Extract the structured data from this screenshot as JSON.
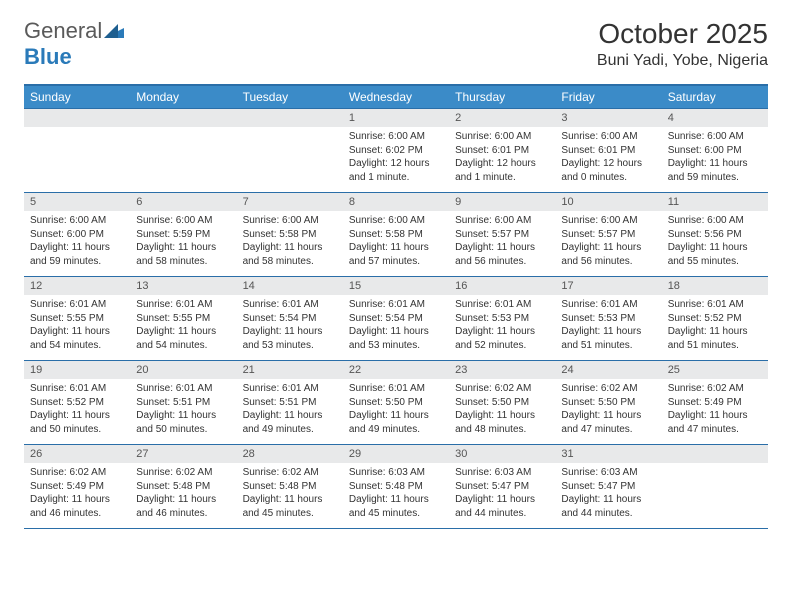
{
  "logo": {
    "word1": "General",
    "word2": "Blue"
  },
  "title": "October 2025",
  "location": "Buni Yadi, Yobe, Nigeria",
  "colors": {
    "header_bg": "#3b8bc8",
    "border": "#2a6ea8",
    "daynum_bg": "#e8e9ea",
    "text": "#333333"
  },
  "day_names": [
    "Sunday",
    "Monday",
    "Tuesday",
    "Wednesday",
    "Thursday",
    "Friday",
    "Saturday"
  ],
  "weeks": [
    [
      null,
      null,
      null,
      {
        "n": "1",
        "sunrise": "Sunrise: 6:00 AM",
        "sunset": "Sunset: 6:02 PM",
        "daylight": "Daylight: 12 hours and 1 minute."
      },
      {
        "n": "2",
        "sunrise": "Sunrise: 6:00 AM",
        "sunset": "Sunset: 6:01 PM",
        "daylight": "Daylight: 12 hours and 1 minute."
      },
      {
        "n": "3",
        "sunrise": "Sunrise: 6:00 AM",
        "sunset": "Sunset: 6:01 PM",
        "daylight": "Daylight: 12 hours and 0 minutes."
      },
      {
        "n": "4",
        "sunrise": "Sunrise: 6:00 AM",
        "sunset": "Sunset: 6:00 PM",
        "daylight": "Daylight: 11 hours and 59 minutes."
      }
    ],
    [
      {
        "n": "5",
        "sunrise": "Sunrise: 6:00 AM",
        "sunset": "Sunset: 6:00 PM",
        "daylight": "Daylight: 11 hours and 59 minutes."
      },
      {
        "n": "6",
        "sunrise": "Sunrise: 6:00 AM",
        "sunset": "Sunset: 5:59 PM",
        "daylight": "Daylight: 11 hours and 58 minutes."
      },
      {
        "n": "7",
        "sunrise": "Sunrise: 6:00 AM",
        "sunset": "Sunset: 5:58 PM",
        "daylight": "Daylight: 11 hours and 58 minutes."
      },
      {
        "n": "8",
        "sunrise": "Sunrise: 6:00 AM",
        "sunset": "Sunset: 5:58 PM",
        "daylight": "Daylight: 11 hours and 57 minutes."
      },
      {
        "n": "9",
        "sunrise": "Sunrise: 6:00 AM",
        "sunset": "Sunset: 5:57 PM",
        "daylight": "Daylight: 11 hours and 56 minutes."
      },
      {
        "n": "10",
        "sunrise": "Sunrise: 6:00 AM",
        "sunset": "Sunset: 5:57 PM",
        "daylight": "Daylight: 11 hours and 56 minutes."
      },
      {
        "n": "11",
        "sunrise": "Sunrise: 6:00 AM",
        "sunset": "Sunset: 5:56 PM",
        "daylight": "Daylight: 11 hours and 55 minutes."
      }
    ],
    [
      {
        "n": "12",
        "sunrise": "Sunrise: 6:01 AM",
        "sunset": "Sunset: 5:55 PM",
        "daylight": "Daylight: 11 hours and 54 minutes."
      },
      {
        "n": "13",
        "sunrise": "Sunrise: 6:01 AM",
        "sunset": "Sunset: 5:55 PM",
        "daylight": "Daylight: 11 hours and 54 minutes."
      },
      {
        "n": "14",
        "sunrise": "Sunrise: 6:01 AM",
        "sunset": "Sunset: 5:54 PM",
        "daylight": "Daylight: 11 hours and 53 minutes."
      },
      {
        "n": "15",
        "sunrise": "Sunrise: 6:01 AM",
        "sunset": "Sunset: 5:54 PM",
        "daylight": "Daylight: 11 hours and 53 minutes."
      },
      {
        "n": "16",
        "sunrise": "Sunrise: 6:01 AM",
        "sunset": "Sunset: 5:53 PM",
        "daylight": "Daylight: 11 hours and 52 minutes."
      },
      {
        "n": "17",
        "sunrise": "Sunrise: 6:01 AM",
        "sunset": "Sunset: 5:53 PM",
        "daylight": "Daylight: 11 hours and 51 minutes."
      },
      {
        "n": "18",
        "sunrise": "Sunrise: 6:01 AM",
        "sunset": "Sunset: 5:52 PM",
        "daylight": "Daylight: 11 hours and 51 minutes."
      }
    ],
    [
      {
        "n": "19",
        "sunrise": "Sunrise: 6:01 AM",
        "sunset": "Sunset: 5:52 PM",
        "daylight": "Daylight: 11 hours and 50 minutes."
      },
      {
        "n": "20",
        "sunrise": "Sunrise: 6:01 AM",
        "sunset": "Sunset: 5:51 PM",
        "daylight": "Daylight: 11 hours and 50 minutes."
      },
      {
        "n": "21",
        "sunrise": "Sunrise: 6:01 AM",
        "sunset": "Sunset: 5:51 PM",
        "daylight": "Daylight: 11 hours and 49 minutes."
      },
      {
        "n": "22",
        "sunrise": "Sunrise: 6:01 AM",
        "sunset": "Sunset: 5:50 PM",
        "daylight": "Daylight: 11 hours and 49 minutes."
      },
      {
        "n": "23",
        "sunrise": "Sunrise: 6:02 AM",
        "sunset": "Sunset: 5:50 PM",
        "daylight": "Daylight: 11 hours and 48 minutes."
      },
      {
        "n": "24",
        "sunrise": "Sunrise: 6:02 AM",
        "sunset": "Sunset: 5:50 PM",
        "daylight": "Daylight: 11 hours and 47 minutes."
      },
      {
        "n": "25",
        "sunrise": "Sunrise: 6:02 AM",
        "sunset": "Sunset: 5:49 PM",
        "daylight": "Daylight: 11 hours and 47 minutes."
      }
    ],
    [
      {
        "n": "26",
        "sunrise": "Sunrise: 6:02 AM",
        "sunset": "Sunset: 5:49 PM",
        "daylight": "Daylight: 11 hours and 46 minutes."
      },
      {
        "n": "27",
        "sunrise": "Sunrise: 6:02 AM",
        "sunset": "Sunset: 5:48 PM",
        "daylight": "Daylight: 11 hours and 46 minutes."
      },
      {
        "n": "28",
        "sunrise": "Sunrise: 6:02 AM",
        "sunset": "Sunset: 5:48 PM",
        "daylight": "Daylight: 11 hours and 45 minutes."
      },
      {
        "n": "29",
        "sunrise": "Sunrise: 6:03 AM",
        "sunset": "Sunset: 5:48 PM",
        "daylight": "Daylight: 11 hours and 45 minutes."
      },
      {
        "n": "30",
        "sunrise": "Sunrise: 6:03 AM",
        "sunset": "Sunset: 5:47 PM",
        "daylight": "Daylight: 11 hours and 44 minutes."
      },
      {
        "n": "31",
        "sunrise": "Sunrise: 6:03 AM",
        "sunset": "Sunset: 5:47 PM",
        "daylight": "Daylight: 11 hours and 44 minutes."
      },
      null
    ]
  ]
}
